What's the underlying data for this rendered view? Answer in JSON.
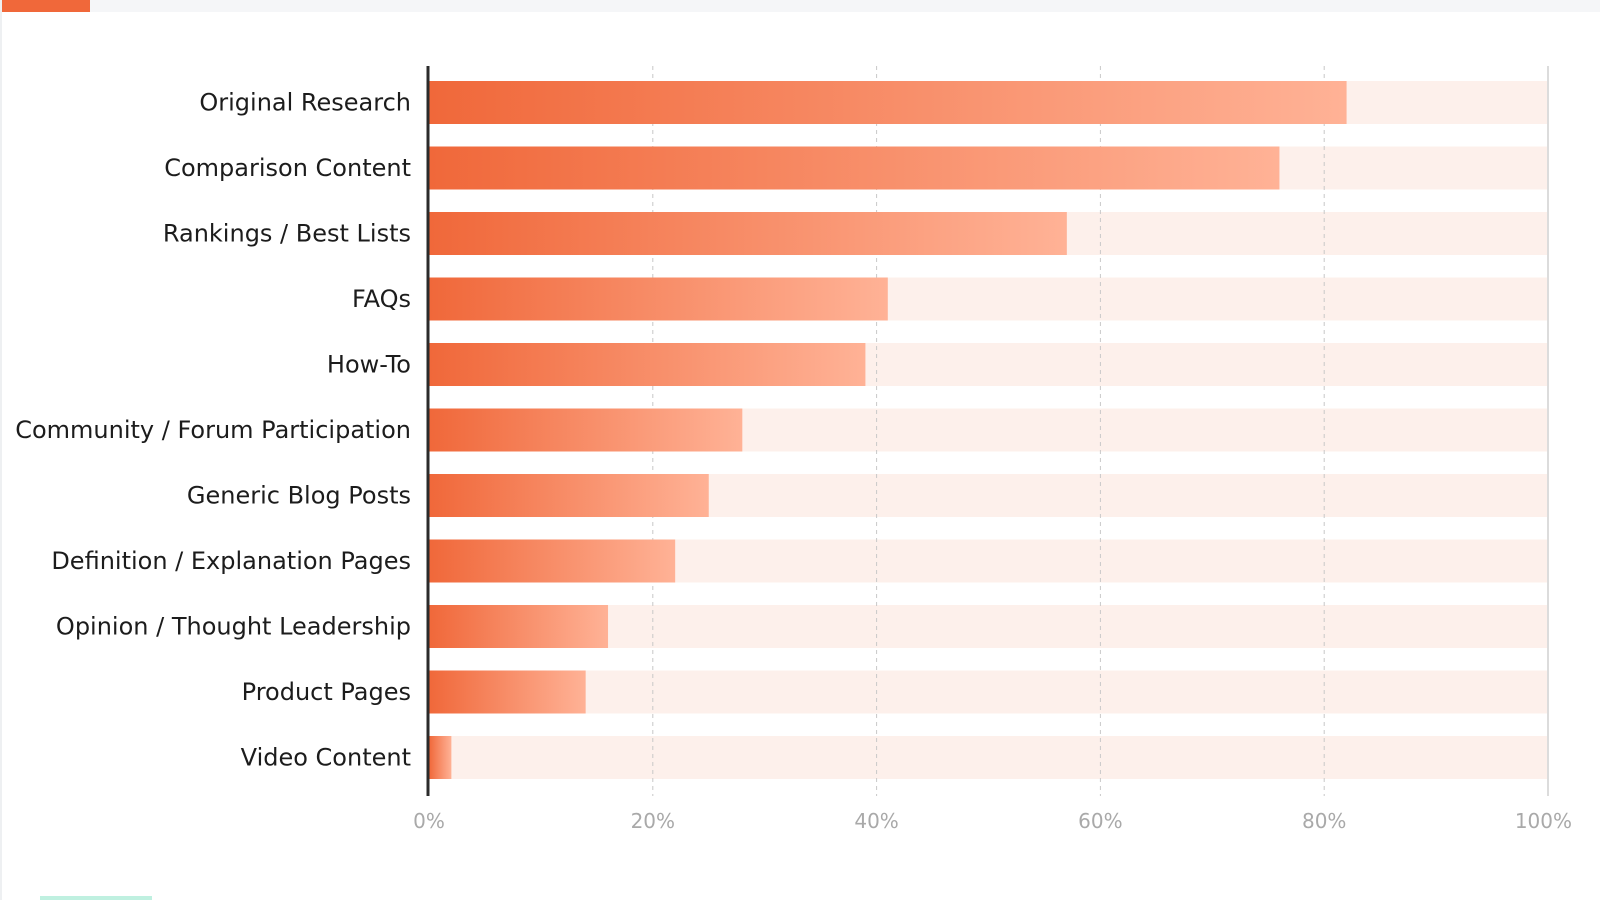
{
  "colors": {
    "bar_gradient_start": "#f0683a",
    "bar_gradient_end": "#ffb296",
    "track": "#fdf0eb",
    "accent": "#f0683a",
    "axis": "#2b2b2b",
    "grid": "#c8c8c8",
    "tick_text": "#a9a9a9",
    "label_text": "#1c1c1c"
  },
  "chart_data": {
    "type": "bar",
    "orientation": "horizontal",
    "categories": [
      "Original Research",
      "Comparison Content",
      "Rankings / Best Lists",
      "FAQs",
      "How-To",
      "Community / Forum Participation",
      "Generic Blog Posts",
      "Definition / Explanation Pages",
      "Opinion / Thought Leadership",
      "Product Pages",
      "Video Content"
    ],
    "values": [
      82,
      76,
      57,
      41,
      39,
      28,
      25,
      22,
      16,
      14,
      2
    ],
    "xlim": [
      0,
      100
    ],
    "xticks": [
      0,
      20,
      40,
      60,
      80,
      100
    ],
    "xtick_labels": [
      "0%",
      "20%",
      "40%",
      "60%",
      "80%",
      "100%"
    ],
    "grid": "vertical-dashed",
    "legend": "none"
  }
}
